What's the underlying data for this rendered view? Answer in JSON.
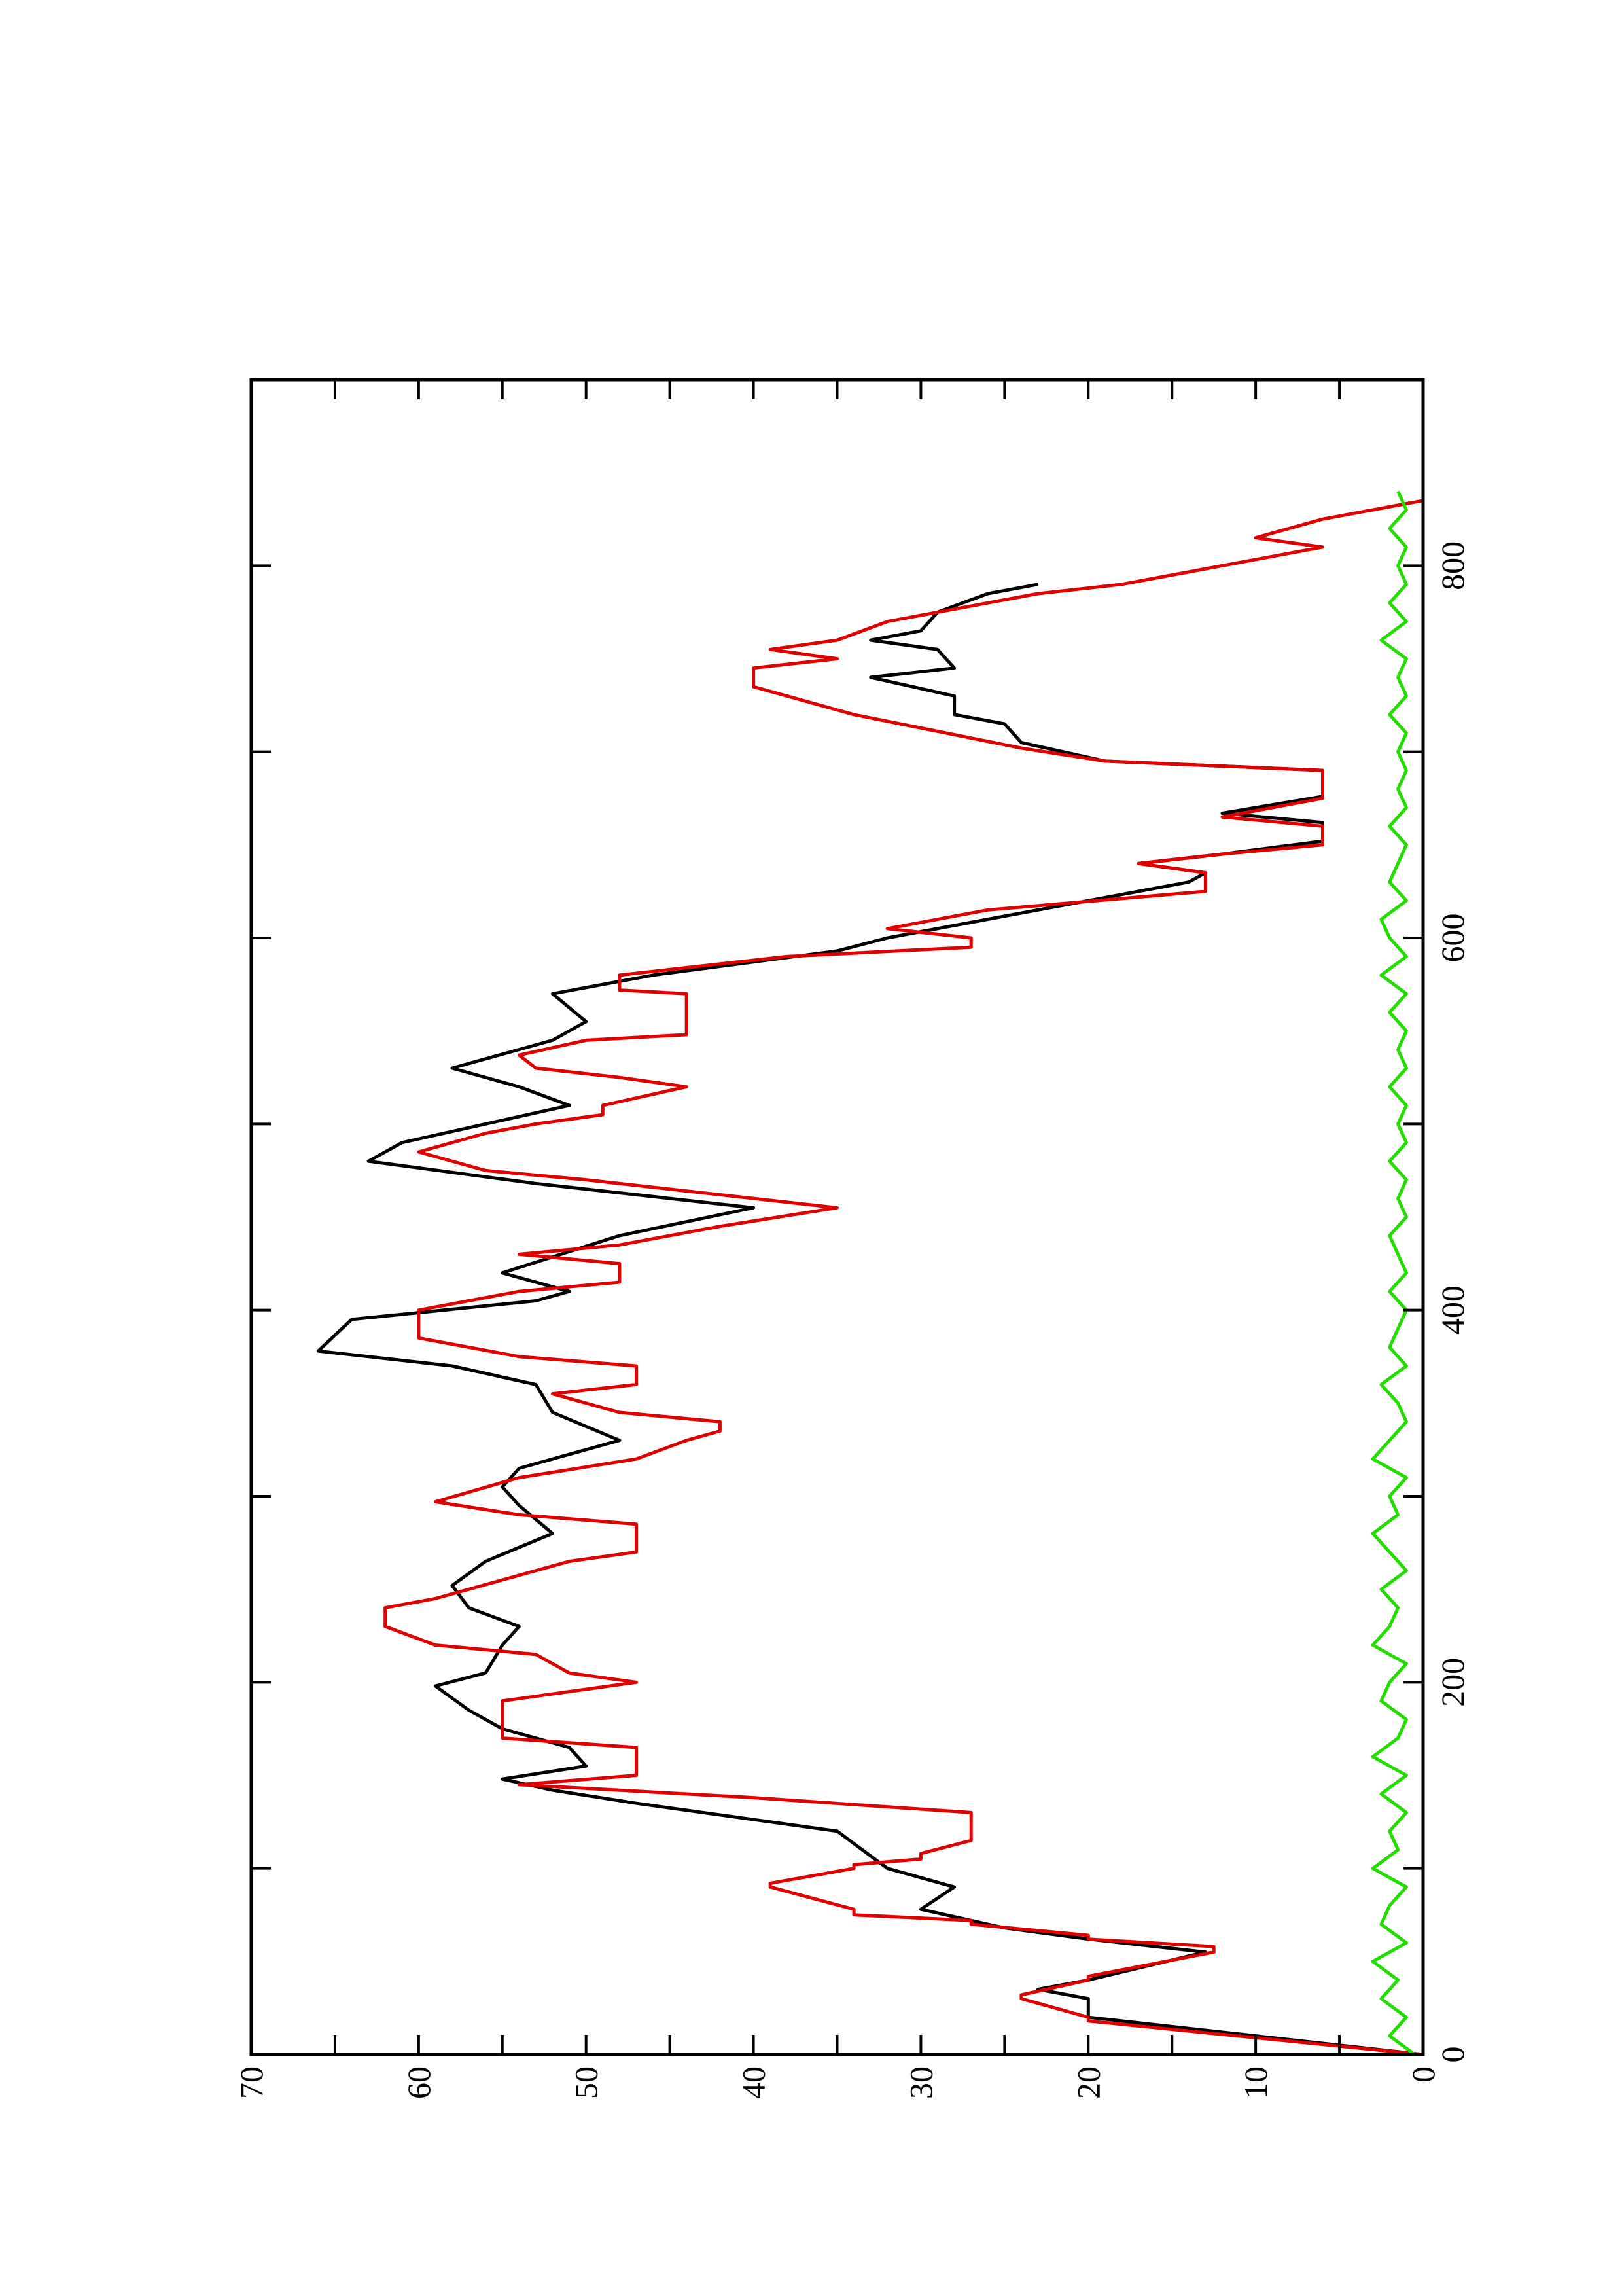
{
  "chart_data": {
    "type": "line",
    "xlim": [
      0,
      900
    ],
    "xticks": [
      0,
      200,
      400,
      600,
      800
    ],
    "xminor_ticks": [
      100,
      300,
      500,
      700
    ],
    "ylim": [
      0,
      70
    ],
    "yticks": [
      0,
      10,
      20,
      30,
      40,
      50,
      60,
      70
    ],
    "yminor_ticks": [
      5,
      15,
      25,
      35,
      45,
      55,
      65
    ],
    "series": [
      {
        "color": "#000000",
        "x": [
          0,
          10,
          20,
          30,
          35,
          40,
          55,
          62,
          68,
          78,
          90,
          100,
          120,
          135,
          142,
          148,
          155,
          165,
          175,
          185,
          198,
          205,
          220,
          230,
          240,
          252,
          265,
          280,
          295,
          305,
          315,
          330,
          345,
          360,
          370,
          378,
          395,
          405,
          410,
          420,
          440,
          455,
          468,
          480,
          490,
          500,
          510,
          520,
          530,
          545,
          555,
          570,
          580,
          593,
          600,
          615,
          630,
          635,
          640,
          645,
          652,
          662,
          667,
          676,
          690,
          695,
          705,
          715,
          720,
          730,
          740,
          745,
          755,
          760,
          765,
          775,
          785,
          790
        ],
        "values": [
          0,
          10,
          20,
          20,
          23,
          20,
          13,
          20,
          25,
          30,
          28,
          32,
          35,
          47,
          52,
          55,
          50,
          51,
          55,
          57,
          59,
          56,
          55,
          54,
          57,
          58,
          56,
          52,
          54,
          55,
          54,
          48,
          52,
          53,
          58,
          66,
          64,
          53,
          51,
          55,
          48,
          40,
          53,
          63,
          61,
          56,
          51,
          54,
          58,
          52,
          50,
          52,
          46,
          35,
          32,
          23,
          14,
          13,
          17,
          12,
          6,
          6,
          12,
          6,
          6,
          19,
          24,
          25,
          28,
          28,
          33,
          28,
          29,
          33,
          30,
          29,
          26,
          23
        ]
      },
      {
        "color": "#e00000",
        "x": [
          0,
          18,
          20,
          30,
          32,
          40,
          42,
          55,
          58,
          62,
          64,
          70,
          72,
          75,
          78,
          90,
          92,
          100,
          102,
          105,
          108,
          115,
          130,
          138,
          145,
          150,
          165,
          170,
          190,
          200,
          205,
          215,
          220,
          230,
          240,
          245,
          250,
          255,
          260,
          265,
          270,
          285,
          290,
          297,
          310,
          320,
          330,
          335,
          340,
          345,
          355,
          360,
          370,
          375,
          385,
          400,
          410,
          415,
          425,
          430,
          435,
          440,
          445,
          455,
          460,
          470,
          475,
          485,
          495,
          500,
          505,
          510,
          520,
          525,
          530,
          537,
          545,
          548,
          570,
          572,
          580,
          590,
          595,
          600,
          605,
          615,
          625,
          635,
          640,
          645,
          650,
          660,
          665,
          675,
          690,
          695,
          702,
          720,
          735,
          745,
          750,
          755,
          760,
          770,
          785,
          790,
          810,
          815,
          825,
          835
        ],
        "values": [
          0,
          20,
          20,
          24,
          24,
          20,
          20,
          12.5,
          12.5,
          20,
          20,
          27,
          27,
          34,
          34,
          39,
          39,
          34,
          34,
          30,
          30,
          27,
          27,
          40,
          54,
          47,
          47,
          55,
          55,
          47,
          51,
          53,
          59,
          62,
          62,
          59,
          57,
          55,
          53,
          51,
          47,
          47,
          54,
          59,
          54,
          47,
          44,
          42,
          42,
          48,
          52,
          47,
          47,
          54,
          60,
          60,
          54,
          48,
          48,
          54,
          48,
          45,
          42,
          35,
          40,
          50,
          56,
          60,
          56,
          53,
          49,
          49,
          44,
          48,
          53,
          54,
          50,
          44,
          44,
          48,
          48,
          38,
          27,
          27,
          32,
          26,
          13,
          13,
          17,
          12,
          6,
          6,
          12,
          6,
          6,
          19,
          24,
          34,
          40,
          40,
          35,
          39,
          35,
          32,
          23,
          18,
          6,
          10,
          6,
          0
        ]
      },
      {
        "color": "#22dd00",
        "x": [
          0,
          10,
          20,
          30,
          40,
          50,
          60,
          70,
          80,
          90,
          100,
          110,
          120,
          130,
          140,
          150,
          160,
          170,
          180,
          190,
          200,
          210,
          220,
          230,
          240,
          250,
          260,
          270,
          280,
          290,
          300,
          310,
          320,
          330,
          340,
          350,
          360,
          370,
          380,
          390,
          400,
          410,
          420,
          430,
          440,
          450,
          460,
          470,
          480,
          490,
          500,
          510,
          520,
          530,
          540,
          550,
          560,
          570,
          580,
          590,
          600,
          610,
          620,
          630,
          640,
          650,
          660,
          670,
          680,
          690,
          700,
          710,
          720,
          730,
          740,
          750,
          760,
          770,
          780,
          790,
          800,
          810,
          820,
          830,
          840
        ],
        "values": [
          0.5,
          2,
          1,
          2.5,
          1.5,
          3,
          1,
          2.5,
          2,
          1,
          3,
          1.5,
          2,
          1,
          2.5,
          1,
          3,
          1.5,
          1,
          2.5,
          2,
          1,
          3,
          2,
          1.5,
          2.5,
          1,
          2,
          3,
          1.5,
          2,
          1,
          3,
          2,
          1,
          1.5,
          2.5,
          1,
          2,
          1.5,
          1,
          2,
          1,
          1.5,
          2,
          1,
          1.5,
          1,
          2,
          1,
          1.5,
          1,
          2,
          1,
          1.5,
          1,
          2,
          1,
          2.5,
          1,
          2,
          2.5,
          1,
          2,
          1.5,
          1,
          2,
          1,
          1.5,
          1,
          1.5,
          1,
          2,
          1,
          1.5,
          1,
          2.5,
          1,
          2,
          1,
          1.5,
          1,
          2,
          1,
          1.5
        ]
      }
    ]
  }
}
